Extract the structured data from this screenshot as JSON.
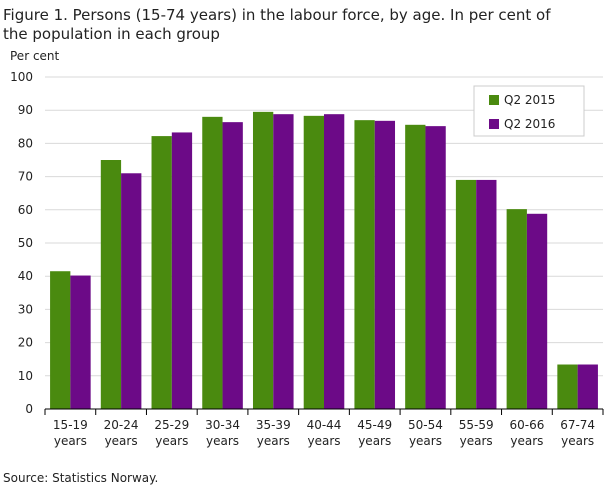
{
  "chart_data": {
    "type": "bar",
    "title": "Figure 1.  Persons (15-74 years) in the labour force, by age. In per cent of the population in each group",
    "y_label": "Per cent",
    "source": "Source: Statistics Norway.",
    "categories": [
      "15-19 years",
      "20-24 years",
      "25-29 years",
      "30-34 years",
      "35-39 years",
      "40-44 years",
      "45-49 years",
      "50-54 years",
      "55-59 years",
      "60-66 years",
      "67-74 years"
    ],
    "series": [
      {
        "name": "Q2 2015",
        "color": "#4a8a0f",
        "values": [
          41.5,
          75,
          82.2,
          88,
          89.5,
          88.3,
          87,
          85.6,
          69,
          60.2,
          13.4
        ]
      },
      {
        "name": "Q2 2016",
        "color": "#6c0a87",
        "values": [
          40.2,
          71,
          83.3,
          86.4,
          88.8,
          88.8,
          86.8,
          85.2,
          69,
          58.8,
          13.4
        ]
      }
    ],
    "ylim": [
      0,
      100
    ],
    "yticks": [
      0,
      10,
      20,
      30,
      40,
      50,
      60,
      70,
      80,
      90,
      100
    ],
    "grid": true,
    "legend": "top-right"
  }
}
